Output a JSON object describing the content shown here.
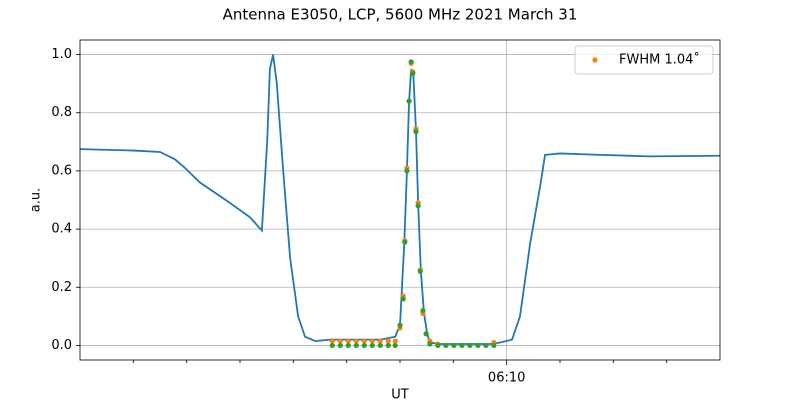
{
  "chart_data": {
    "type": "line",
    "title": "Antenna E3050, LCP, 5600 MHz 2021 March 31",
    "xlabel": "UT",
    "ylabel": "a.u.",
    "xlim": [
      362,
      374
    ],
    "xticks": [
      {
        "value": 370,
        "label": "06:10"
      }
    ],
    "xminorticks": [
      363,
      364,
      365,
      366,
      367,
      368,
      369,
      371,
      372,
      373
    ],
    "ylim": [
      -0.05,
      1.05
    ],
    "yticks": [
      {
        "value": 0,
        "label": "0.0"
      },
      0.2,
      0.4,
      0.6,
      0.8,
      {
        "value": 1,
        "label": "1.0"
      }
    ],
    "grid": true,
    "legend": "upper right",
    "series": [
      {
        "type": "line",
        "color": "#1f77b4",
        "x": [
          362,
          363.01,
          363.5,
          363.78,
          363.97,
          364.25,
          364.81,
          365.19,
          365.41,
          365.51,
          365.56,
          365.62,
          365.69,
          365.81,
          365.94,
          366.09,
          366.22,
          366.41,
          366.69,
          367.63,
          367.91,
          368.0,
          368.08,
          368.13,
          368.17,
          368.21,
          368.25,
          368.3,
          368.34,
          368.39,
          368.45,
          368.51,
          368.56,
          368.75,
          369.69,
          369.88,
          370.1,
          370.25,
          370.44,
          370.63,
          370.72,
          371.0,
          371.75,
          372.69,
          374
        ],
        "values": [
          0.675,
          0.67,
          0.665,
          0.64,
          0.61,
          0.56,
          0.49,
          0.44,
          0.395,
          0.7,
          0.95,
          1.0,
          0.9,
          0.6,
          0.3,
          0.1,
          0.03,
          0.015,
          0.02,
          0.02,
          0.03,
          0.07,
          0.35,
          0.6,
          0.84,
          0.95,
          0.93,
          0.74,
          0.49,
          0.26,
          0.11,
          0.04,
          0.01,
          0.005,
          0.005,
          0.01,
          0.02,
          0.1,
          0.35,
          0.55,
          0.655,
          0.66,
          0.655,
          0.65,
          0.652
        ]
      },
      {
        "type": "scatter",
        "name": "FWHM 1.04˚",
        "color": "#ff7f0e",
        "x": [
          366.73,
          366.88,
          367.03,
          367.18,
          367.33,
          367.48,
          367.63,
          367.78,
          367.91,
          368.0,
          368.06,
          368.09,
          368.13,
          368.17,
          368.21,
          368.24,
          368.3,
          368.34,
          368.38,
          368.43,
          368.49,
          368.56,
          368.71,
          368.86,
          369.01,
          369.16,
          369.31,
          369.46,
          369.61,
          369.76
        ],
        "values": [
          0.015,
          0.015,
          0.015,
          0.015,
          0.015,
          0.015,
          0.015,
          0.015,
          0.015,
          0.06,
          0.17,
          0.36,
          0.61,
          0.84,
          0.97,
          0.94,
          0.745,
          0.49,
          0.26,
          0.11,
          0.04,
          0.015,
          0.005,
          0,
          0,
          0,
          0,
          0,
          0,
          0.01
        ]
      },
      {
        "type": "scatter",
        "color": "#2ca02c",
        "x": [
          366.73,
          366.88,
          367.03,
          367.18,
          367.33,
          367.48,
          367.63,
          367.78,
          367.91,
          368.0,
          368.06,
          368.09,
          368.13,
          368.17,
          368.21,
          368.24,
          368.3,
          368.34,
          368.38,
          368.43,
          368.49,
          368.56,
          368.71,
          368.86,
          369.01,
          369.16,
          369.31,
          369.46,
          369.61,
          369.76
        ],
        "values": [
          0,
          0,
          0,
          0,
          0,
          0,
          0,
          0,
          0,
          0.07,
          0.16,
          0.355,
          0.6,
          0.84,
          0.975,
          0.935,
          0.735,
          0.48,
          0.255,
          0.12,
          0.04,
          0.005,
          0,
          0,
          0,
          0,
          0,
          0,
          0,
          0
        ]
      }
    ]
  }
}
